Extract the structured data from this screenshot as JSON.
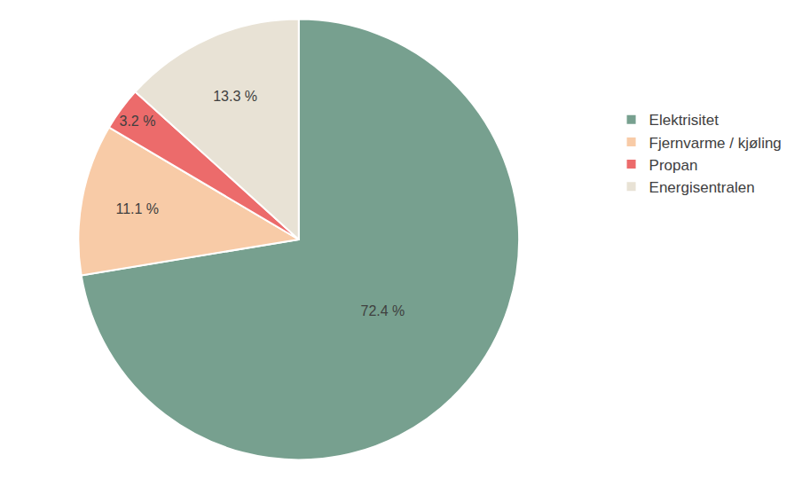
{
  "chart_data": {
    "type": "pie",
    "categories": [
      "Elektrisitet",
      "Fjernvarme / kjøling",
      "Propan",
      "Energisentralen"
    ],
    "values": [
      72.4,
      11.1,
      3.2,
      13.3
    ],
    "value_labels": [
      "72.4 %",
      "11.1 %",
      "3.2 %",
      "13.3 %"
    ],
    "colors": [
      "#77a08f",
      "#f8cba7",
      "#ec6b6b",
      "#e8e2d5"
    ],
    "data_labels": true,
    "legend": "right"
  }
}
